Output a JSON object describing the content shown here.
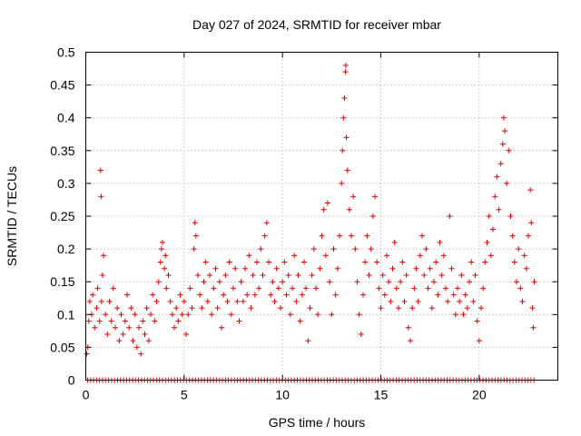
{
  "chart_data": {
    "type": "scatter",
    "title": "Day 027 of 2024, SRMTID for receiver mbar",
    "xlabel": "GPS time / hours",
    "ylabel": "SRMTID / TECUs",
    "xlim": [
      0,
      24
    ],
    "ylim": [
      0,
      0.5
    ],
    "xticks": [
      0,
      5,
      10,
      15,
      20
    ],
    "xtick_labels": [
      "0",
      "5",
      "10",
      "15",
      "20"
    ],
    "yticks": [
      0,
      0.05,
      0.1,
      0.15,
      0.2,
      0.25,
      0.3,
      0.35,
      0.4,
      0.45,
      0.5
    ],
    "ytick_labels": [
      "0",
      "0.05",
      "0.1",
      "0.15",
      "0.2",
      "0.25",
      "0.3",
      "0.35",
      "0.4",
      "0.45",
      "0.5"
    ],
    "grid": true,
    "marker": "+",
    "color": "#e00000",
    "series": [
      {
        "name": "SRMTID",
        "points": [
          [
            0.05,
            0.04
          ],
          [
            0.1,
            0.05
          ],
          [
            0.15,
            0.09
          ],
          [
            0.2,
            0.12
          ],
          [
            0.3,
            0.1
          ],
          [
            0.35,
            0.13
          ],
          [
            0.45,
            0.08
          ],
          [
            0.55,
            0.11
          ],
          [
            0.6,
            0.14
          ],
          [
            0.7,
            0.09
          ],
          [
            0.8,
            0.12
          ],
          [
            0.75,
            0.32
          ],
          [
            0.78,
            0.28
          ],
          [
            0.85,
            0.16
          ],
          [
            0.9,
            0.19
          ],
          [
            1.0,
            0.1
          ],
          [
            1.1,
            0.07
          ],
          [
            1.2,
            0.12
          ],
          [
            1.3,
            0.09
          ],
          [
            1.4,
            0.14
          ],
          [
            1.5,
            0.08
          ],
          [
            1.6,
            0.11
          ],
          [
            1.7,
            0.06
          ],
          [
            1.8,
            0.1
          ],
          [
            1.9,
            0.07
          ],
          [
            2.0,
            0.09
          ],
          [
            2.1,
            0.13
          ],
          [
            2.2,
            0.08
          ],
          [
            2.3,
            0.11
          ],
          [
            2.4,
            0.06
          ],
          [
            2.5,
            0.1
          ],
          [
            2.6,
            0.05
          ],
          [
            2.7,
            0.08
          ],
          [
            2.8,
            0.04
          ],
          [
            2.9,
            0.09
          ],
          [
            3.0,
            0.07
          ],
          [
            3.1,
            0.11
          ],
          [
            3.2,
            0.06
          ],
          [
            3.3,
            0.1
          ],
          [
            3.4,
            0.13
          ],
          [
            3.5,
            0.09
          ],
          [
            3.6,
            0.12
          ],
          [
            3.7,
            0.15
          ],
          [
            3.8,
            0.18
          ],
          [
            3.85,
            0.2
          ],
          [
            3.9,
            0.21
          ],
          [
            4.0,
            0.17
          ],
          [
            4.05,
            0.19
          ],
          [
            4.1,
            0.14
          ],
          [
            4.2,
            0.16
          ],
          [
            4.3,
            0.12
          ],
          [
            4.4,
            0.1
          ],
          [
            4.5,
            0.08
          ],
          [
            4.6,
            0.11
          ],
          [
            4.7,
            0.09
          ],
          [
            4.8,
            0.13
          ],
          [
            4.9,
            0.1
          ],
          [
            5.0,
            0.12
          ],
          [
            5.1,
            0.07
          ],
          [
            5.2,
            0.1
          ],
          [
            5.3,
            0.14
          ],
          [
            5.4,
            0.11
          ],
          [
            5.5,
            0.2
          ],
          [
            5.55,
            0.24
          ],
          [
            5.6,
            0.22
          ],
          [
            5.7,
            0.16
          ],
          [
            5.8,
            0.13
          ],
          [
            5.9,
            0.11
          ],
          [
            6.0,
            0.15
          ],
          [
            6.1,
            0.18
          ],
          [
            6.2,
            0.12
          ],
          [
            6.3,
            0.16
          ],
          [
            6.4,
            0.1
          ],
          [
            6.5,
            0.14
          ],
          [
            6.6,
            0.17
          ],
          [
            6.7,
            0.11
          ],
          [
            6.8,
            0.15
          ],
          [
            6.9,
            0.08
          ],
          [
            7.0,
            0.13
          ],
          [
            7.1,
            0.16
          ],
          [
            7.2,
            0.12
          ],
          [
            7.3,
            0.18
          ],
          [
            7.4,
            0.1
          ],
          [
            7.5,
            0.14
          ],
          [
            7.6,
            0.17
          ],
          [
            7.7,
            0.12
          ],
          [
            7.8,
            0.09
          ],
          [
            7.9,
            0.15
          ],
          [
            8.0,
            0.12
          ],
          [
            8.1,
            0.17
          ],
          [
            8.2,
            0.13
          ],
          [
            8.3,
            0.19
          ],
          [
            8.4,
            0.11
          ],
          [
            8.5,
            0.16
          ],
          [
            8.6,
            0.13
          ],
          [
            8.7,
            0.18
          ],
          [
            8.8,
            0.14
          ],
          [
            8.9,
            0.2
          ],
          [
            9.0,
            0.16
          ],
          [
            9.1,
            0.22
          ],
          [
            9.2,
            0.24
          ],
          [
            9.3,
            0.18
          ],
          [
            9.4,
            0.13
          ],
          [
            9.5,
            0.15
          ],
          [
            9.6,
            0.12
          ],
          [
            9.7,
            0.17
          ],
          [
            9.8,
            0.14
          ],
          [
            9.9,
            0.11
          ],
          [
            10.0,
            0.15
          ],
          [
            10.1,
            0.18
          ],
          [
            10.2,
            0.13
          ],
          [
            10.3,
            0.16
          ],
          [
            10.4,
            0.1
          ],
          [
            10.5,
            0.14
          ],
          [
            10.6,
            0.19
          ],
          [
            10.7,
            0.12
          ],
          [
            10.8,
            0.16
          ],
          [
            10.9,
            0.09
          ],
          [
            11.0,
            0.13
          ],
          [
            11.1,
            0.18
          ],
          [
            11.2,
            0.14
          ],
          [
            11.3,
            0.06
          ],
          [
            11.4,
            0.11
          ],
          [
            11.5,
            0.16
          ],
          [
            11.6,
            0.2
          ],
          [
            11.7,
            0.14
          ],
          [
            11.8,
            0.1
          ],
          [
            11.9,
            0.17
          ],
          [
            12.0,
            0.22
          ],
          [
            12.1,
            0.26
          ],
          [
            12.2,
            0.19
          ],
          [
            12.3,
            0.27
          ],
          [
            12.4,
            0.15
          ],
          [
            12.5,
            0.1
          ],
          [
            12.6,
            0.2
          ],
          [
            12.7,
            0.13
          ],
          [
            12.8,
            0.17
          ],
          [
            12.9,
            0.22
          ],
          [
            13.0,
            0.3
          ],
          [
            13.05,
            0.35
          ],
          [
            13.1,
            0.4
          ],
          [
            13.15,
            0.43
          ],
          [
            13.2,
            0.47
          ],
          [
            13.22,
            0.48
          ],
          [
            13.25,
            0.37
          ],
          [
            13.3,
            0.32
          ],
          [
            13.4,
            0.26
          ],
          [
            13.5,
            0.22
          ],
          [
            13.6,
            0.28
          ],
          [
            13.7,
            0.2
          ],
          [
            13.8,
            0.15
          ],
          [
            13.9,
            0.1
          ],
          [
            14.0,
            0.07
          ],
          [
            14.1,
            0.13
          ],
          [
            14.2,
            0.18
          ],
          [
            14.3,
            0.22
          ],
          [
            14.4,
            0.16
          ],
          [
            14.5,
            0.2
          ],
          [
            14.6,
            0.25
          ],
          [
            14.7,
            0.28
          ],
          [
            14.8,
            0.18
          ],
          [
            14.9,
            0.14
          ],
          [
            15.0,
            0.11
          ],
          [
            15.1,
            0.16
          ],
          [
            15.2,
            0.13
          ],
          [
            15.3,
            0.19
          ],
          [
            15.4,
            0.15
          ],
          [
            15.5,
            0.12
          ],
          [
            15.6,
            0.17
          ],
          [
            15.7,
            0.21
          ],
          [
            15.8,
            0.14
          ],
          [
            15.9,
            0.11
          ],
          [
            16.0,
            0.15
          ],
          [
            16.1,
            0.18
          ],
          [
            16.2,
            0.12
          ],
          [
            16.3,
            0.16
          ],
          [
            16.4,
            0.08
          ],
          [
            16.5,
            0.06
          ],
          [
            16.6,
            0.11
          ],
          [
            16.7,
            0.14
          ],
          [
            16.8,
            0.17
          ],
          [
            16.9,
            0.12
          ],
          [
            17.0,
            0.19
          ],
          [
            17.1,
            0.22
          ],
          [
            17.2,
            0.16
          ],
          [
            17.3,
            0.2
          ],
          [
            17.4,
            0.14
          ],
          [
            17.5,
            0.17
          ],
          [
            17.6,
            0.11
          ],
          [
            17.7,
            0.15
          ],
          [
            17.8,
            0.18
          ],
          [
            17.9,
            0.13
          ],
          [
            18.0,
            0.21
          ],
          [
            18.1,
            0.16
          ],
          [
            18.2,
            0.19
          ],
          [
            18.3,
            0.14
          ],
          [
            18.4,
            0.12
          ],
          [
            18.5,
            0.25
          ],
          [
            18.6,
            0.17
          ],
          [
            18.7,
            0.13
          ],
          [
            18.8,
            0.1
          ],
          [
            18.9,
            0.14
          ],
          [
            19.0,
            0.12
          ],
          [
            19.1,
            0.16
          ],
          [
            19.2,
            0.1
          ],
          [
            19.3,
            0.13
          ],
          [
            19.4,
            0.11
          ],
          [
            19.5,
            0.15
          ],
          [
            19.6,
            0.18
          ],
          [
            19.7,
            0.12
          ],
          [
            19.8,
            0.16
          ],
          [
            19.9,
            0.09
          ],
          [
            20.0,
            0.06
          ],
          [
            20.1,
            0.11
          ],
          [
            20.2,
            0.14
          ],
          [
            20.3,
            0.18
          ],
          [
            20.4,
            0.21
          ],
          [
            20.5,
            0.25
          ],
          [
            20.6,
            0.19
          ],
          [
            20.7,
            0.23
          ],
          [
            20.8,
            0.28
          ],
          [
            20.9,
            0.31
          ],
          [
            21.0,
            0.26
          ],
          [
            21.1,
            0.33
          ],
          [
            21.2,
            0.36
          ],
          [
            21.25,
            0.4
          ],
          [
            21.3,
            0.38
          ],
          [
            21.4,
            0.3
          ],
          [
            21.5,
            0.35
          ],
          [
            21.6,
            0.25
          ],
          [
            21.7,
            0.22
          ],
          [
            21.8,
            0.18
          ],
          [
            21.9,
            0.15
          ],
          [
            22.0,
            0.2
          ],
          [
            22.1,
            0.14
          ],
          [
            22.2,
            0.12
          ],
          [
            22.3,
            0.19
          ],
          [
            22.4,
            0.17
          ],
          [
            22.5,
            0.22
          ],
          [
            22.6,
            0.29
          ],
          [
            22.65,
            0.24
          ],
          [
            22.7,
            0.11
          ],
          [
            22.75,
            0.08
          ],
          [
            22.8,
            0.15
          ]
        ]
      }
    ]
  }
}
